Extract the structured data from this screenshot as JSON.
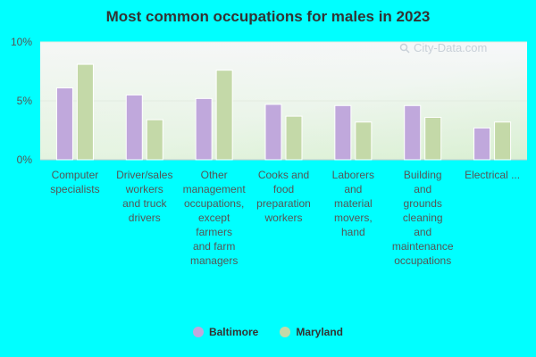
{
  "chart_data": {
    "type": "bar",
    "title": "Most common occupations for males in 2023",
    "xlabel": "",
    "ylabel": "",
    "ylim": [
      0,
      10
    ],
    "y_ticks": [
      "0%",
      "5%",
      "10%"
    ],
    "y_tick_values": [
      0,
      5,
      10
    ],
    "categories": [
      [
        "Computer",
        "specialists"
      ],
      [
        "Driver/sales",
        "workers",
        "and truck",
        "drivers"
      ],
      [
        "Other",
        "management",
        "occupations,",
        "except",
        "farmers",
        "and farm",
        "managers"
      ],
      [
        "Cooks and",
        "food",
        "preparation",
        "workers"
      ],
      [
        "Laborers",
        "and",
        "material",
        "movers,",
        "hand"
      ],
      [
        "Building",
        "and",
        "grounds",
        "cleaning",
        "and",
        "maintenance",
        "occupations"
      ],
      [
        "Electrical ..."
      ]
    ],
    "series": [
      {
        "name": "Baltimore",
        "color": "#c0a8dc",
        "values": [
          6.1,
          5.5,
          5.2,
          4.7,
          4.6,
          4.6,
          2.7
        ]
      },
      {
        "name": "Maryland",
        "color": "#c4d9a8",
        "values": [
          8.1,
          3.4,
          7.6,
          3.7,
          3.2,
          3.6,
          3.2
        ]
      }
    ],
    "grid": true,
    "legend": "bottom"
  },
  "watermark": "City-Data.com"
}
